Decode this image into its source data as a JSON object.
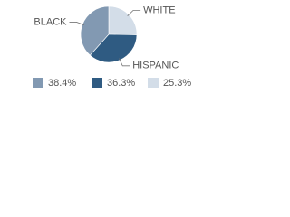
{
  "chart_data": {
    "type": "pie",
    "categories": [
      "BLACK",
      "HISPANIC",
      "WHITE"
    ],
    "values": [
      38.4,
      36.3,
      25.3
    ],
    "value_labels": [
      "38.4%",
      "36.3%",
      "25.3%"
    ],
    "colors": [
      "#8299b2",
      "#2f5b82",
      "#d3dde8"
    ]
  }
}
